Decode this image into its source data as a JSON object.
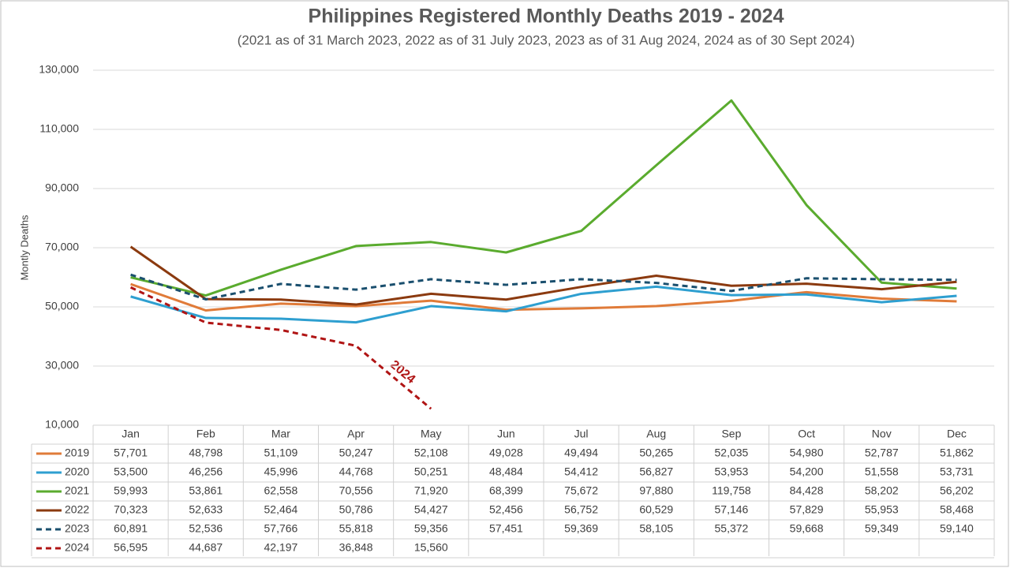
{
  "chart_data": {
    "type": "line",
    "title": "Philippines Registered Monthly Deaths 2019 - 2024",
    "subtitle": "(2021 as of 31 March 2023, 2022 as of 31 July 2023, 2023 as of 31 Aug 2024, 2024 as of 30 Sept 2024)",
    "y_label": "Montly Deaths",
    "annotation": "2024",
    "categories": [
      "Jan",
      "Feb",
      "Mar",
      "Apr",
      "May",
      "Jun",
      "Jul",
      "Aug",
      "Sep",
      "Oct",
      "Nov",
      "Dec"
    ],
    "ylim": [
      10000,
      130000
    ],
    "yticks": [
      {
        "value": 10000,
        "label": "10,000"
      },
      {
        "value": 30000,
        "label": "30,000"
      },
      {
        "value": 50000,
        "label": "50,000"
      },
      {
        "value": 70000,
        "label": "70,000"
      },
      {
        "value": 90000,
        "label": "90,000"
      },
      {
        "value": 110000,
        "label": "110,000"
      },
      {
        "value": 130000,
        "label": "130,000"
      }
    ],
    "grid": true,
    "series": [
      {
        "name": "2019",
        "color": "#e07b39",
        "dashed": false,
        "values": [
          57701,
          48798,
          51109,
          50247,
          52108,
          49028,
          49494,
          50265,
          52035,
          54980,
          52787,
          51862
        ],
        "value_labels": [
          "57,701",
          "48,798",
          "51,109",
          "50,247",
          "52,108",
          "49,028",
          "49,494",
          "50,265",
          "52,035",
          "54,980",
          "52,787",
          "51,862"
        ]
      },
      {
        "name": "2020",
        "color": "#2e9fd0",
        "dashed": false,
        "values": [
          53500,
          46256,
          45996,
          44768,
          50251,
          48484,
          54412,
          56827,
          53953,
          54200,
          51558,
          53731
        ],
        "value_labels": [
          "53,500",
          "46,256",
          "45,996",
          "44,768",
          "50,251",
          "48,484",
          "54,412",
          "56,827",
          "53,953",
          "54,200",
          "51,558",
          "53,731"
        ]
      },
      {
        "name": "2021",
        "color": "#5aab2e",
        "dashed": false,
        "values": [
          59993,
          53861,
          62558,
          70556,
          71920,
          68399,
          75672,
          97880,
          119758,
          84428,
          58202,
          56202
        ],
        "value_labels": [
          "59,993",
          "53,861",
          "62,558",
          "70,556",
          "71,920",
          "68,399",
          "75,672",
          "97,880",
          "119,758",
          "84,428",
          "58,202",
          "56,202"
        ]
      },
      {
        "name": "2022",
        "color": "#8b3a0f",
        "dashed": false,
        "values": [
          70323,
          52633,
          52464,
          50786,
          54427,
          52456,
          56752,
          60529,
          57146,
          57829,
          55953,
          58468
        ],
        "value_labels": [
          "70,323",
          "52,633",
          "52,464",
          "50,786",
          "54,427",
          "52,456",
          "56,752",
          "60,529",
          "57,146",
          "57,829",
          "55,953",
          "58,468"
        ]
      },
      {
        "name": "2023",
        "color": "#1a4f6e",
        "dashed": true,
        "values": [
          60891,
          52536,
          57766,
          55818,
          59356,
          57451,
          59369,
          58105,
          55372,
          59668,
          59349,
          59140
        ],
        "value_labels": [
          "60,891",
          "52,536",
          "57,766",
          "55,818",
          "59,356",
          "57,451",
          "59,369",
          "58,105",
          "55,372",
          "59,668",
          "59,349",
          "59,140"
        ]
      },
      {
        "name": "2024",
        "color": "#b01414",
        "dashed": true,
        "values": [
          56595,
          44687,
          42197,
          36848,
          15560,
          null,
          null,
          null,
          null,
          null,
          null,
          null
        ],
        "value_labels": [
          "56,595",
          "44,687",
          "42,197",
          "36,848",
          "15,560",
          null,
          null,
          null,
          null,
          null,
          null,
          null
        ]
      }
    ]
  }
}
